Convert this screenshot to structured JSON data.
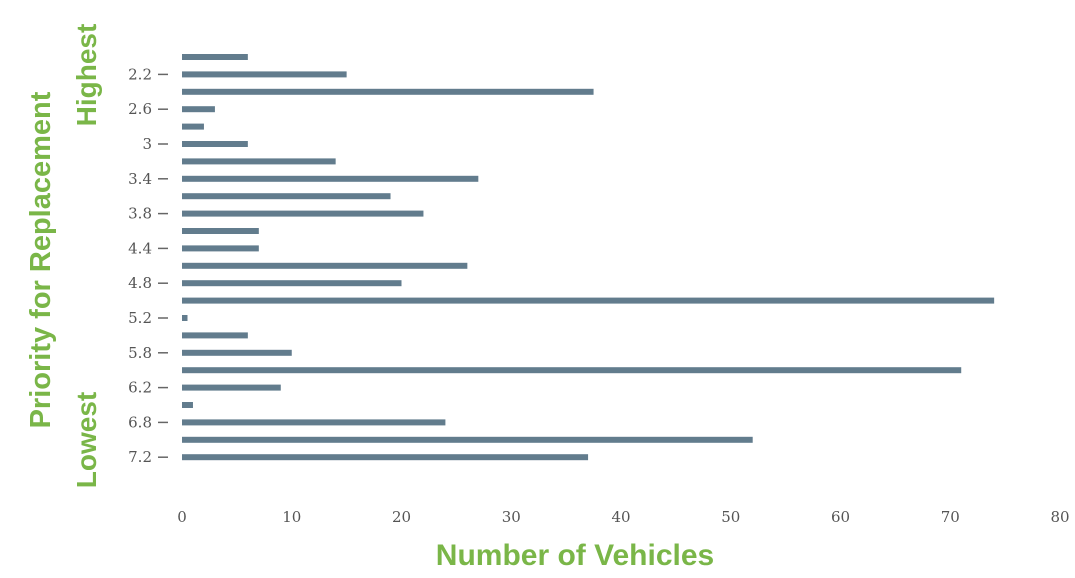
{
  "chart_data": {
    "type": "bar",
    "orientation": "horizontal",
    "xlabel": "Number of Vehicles",
    "ylabel": "Priority for Replacement",
    "y_high_label": "Highest",
    "y_low_label": "Lowest",
    "xlim": [
      0,
      80
    ],
    "x_ticks": [
      "0",
      "10",
      "20",
      "30",
      "40",
      "50",
      "60",
      "70",
      "80"
    ],
    "y_tick_labels": [
      "2.2",
      "2.6",
      "3",
      "3.4",
      "3.8",
      "4.4",
      "4.8",
      "5.2",
      "5.8",
      "6.2",
      "6.8",
      "7.2"
    ],
    "values": [
      6,
      15,
      37.5,
      3,
      2,
      6,
      14,
      27,
      19,
      22,
      7,
      7,
      26,
      20,
      74,
      0.5,
      6,
      10,
      71,
      9,
      1,
      24,
      52,
      37
    ],
    "bar_color": "#627c8d",
    "title_color": "#7ab648",
    "grid": false,
    "legend": "none"
  }
}
